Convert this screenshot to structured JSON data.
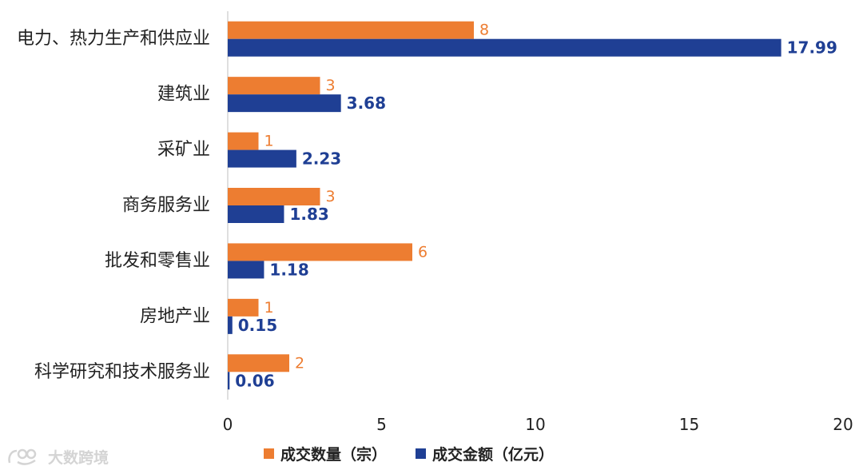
{
  "chart_data": {
    "type": "bar",
    "orientation": "horizontal",
    "categories": [
      "电力、热力生产和供应业",
      "建筑业",
      "采矿业",
      "商务服务业",
      "批发和零售业",
      "房地产业",
      "科学研究和技术服务业"
    ],
    "series": [
      {
        "name": "成交数量（宗）",
        "color": "#ED7D31",
        "values": [
          8,
          3,
          1,
          3,
          6,
          1,
          2
        ],
        "labels": [
          "8",
          "3",
          "1",
          "3",
          "6",
          "1",
          "2"
        ]
      },
      {
        "name": "成交金额（亿元）",
        "color": "#1F3F94",
        "values": [
          17.99,
          3.68,
          2.23,
          1.83,
          1.18,
          0.15,
          0.06
        ],
        "labels": [
          "17.99",
          "3.68",
          "2.23",
          "1.83",
          "1.18",
          "0.15",
          "0.06"
        ]
      }
    ],
    "xlim": [
      0,
      20
    ],
    "xticks": [
      0,
      5,
      10,
      15,
      20
    ],
    "xtick_labels": [
      "0",
      "5",
      "10",
      "15",
      "20"
    ],
    "grid": false,
    "legend_position": "bottom"
  },
  "watermark": {
    "text": "大数跨境"
  }
}
